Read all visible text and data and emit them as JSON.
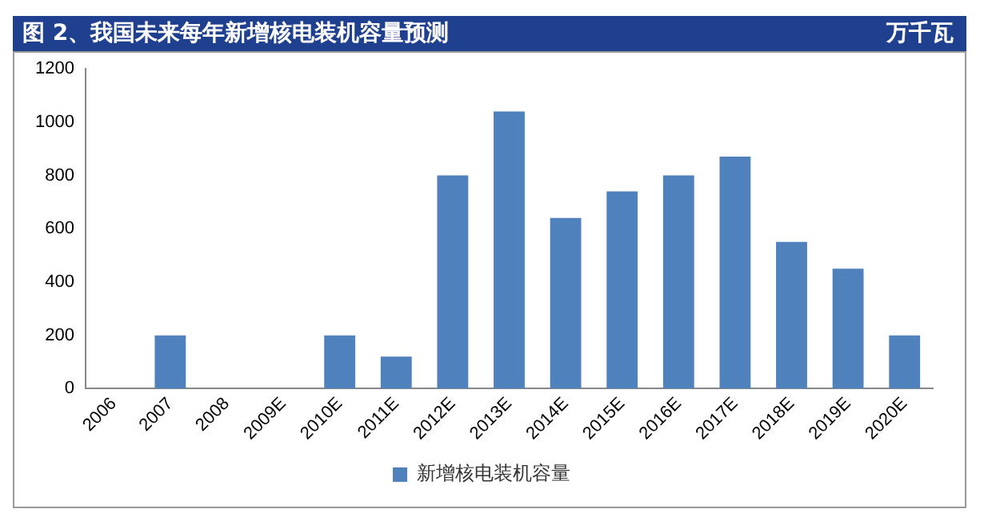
{
  "chart_data": {
    "type": "bar",
    "title": "图 2、我国未来每年新增核电装机容量预测",
    "ylabel": "万千瓦",
    "categories": [
      "2006",
      "2007",
      "2008",
      "2009E",
      "2010E",
      "2011E",
      "2012E",
      "2013E",
      "2014E",
      "2015E",
      "2016E",
      "2017E",
      "2018E",
      "2019E",
      "2020E"
    ],
    "series": [
      {
        "name": "新增核电装机容量",
        "color": "#4f81bd",
        "values": [
          0,
          200,
          0,
          0,
          200,
          120,
          800,
          1040,
          640,
          740,
          800,
          870,
          550,
          450,
          200
        ]
      }
    ],
    "ylim": [
      0,
      1200
    ],
    "yticks": [
      0,
      200,
      400,
      600,
      800,
      1000,
      1200
    ],
    "grid": false,
    "legend": "bottom"
  }
}
